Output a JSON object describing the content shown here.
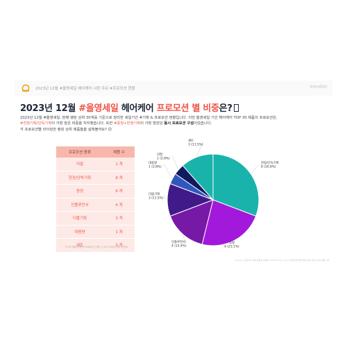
{
  "header": {
    "breadcrumb": "2023년 12월 #올영세일 헤어케어 시장 주요 #프로모션 현황",
    "brand": "trendier"
  },
  "title": {
    "prefix": "2023년 12월 ",
    "highlight1": "#올영세일",
    "middle": " 헤어케어 ",
    "highlight2": "프로모션 별 비중",
    "suffix": "은?"
  },
  "description": {
    "line1": "2023년 12월 #올영세일, 판매 랭킹 상위 30개를 기준으로 정리한 세일기간 #기획 & 프로모션 현황입니다. 이번 올영세일 기간 헤어케어 TOP 30 제품의 프로모션은,",
    "line2_red1": "#한정기획/단독기획",
    "line2_mid": "이 가장 높은 비중을 차지했습니다. 또한 ",
    "line2_red2": "#증정+한정기획",
    "line2_end": "이 가장 많았던 ",
    "line2_bold": "동시 프로모션 구성",
    "line2_tail": "이었습니다.",
    "line3": "각 프로모션별 라이징한 랭킹 상위 제품들을 살펴볼까요? 😊"
  },
  "table": {
    "header_type": "프로모션 종류",
    "header_count": "제품 수",
    "rows": [
      {
        "type": "리필",
        "count": "1 개"
      },
      {
        "type": "한정/단독기획",
        "count": "8 개"
      },
      {
        "type": "증정",
        "count": "6 개"
      },
      {
        "type": "인플루언서",
        "count": "4 개"
      },
      {
        "type": "더블기획",
        "count": "3 개"
      },
      {
        "type": "대용량",
        "count": "1 개"
      },
      {
        "type": "세트",
        "count": "3 개"
      }
    ],
    "note": "**1개 제품에 중복 프로모션 진행 시 각각 프로모션에 카운트"
  },
  "source": "Source: 트렌디어 자체 클롤링 데이터, 2023.12.01~12.07 올리브영 헤어케어 랭킹 상위 30개 제품 기준",
  "colors": {
    "accent": "#ef5349",
    "table_header": "#f7b7ad",
    "table_row": "#fde9e6"
  },
  "chart_data": {
    "type": "pie",
    "slices": [
      {
        "name": "한정/단독기획",
        "count": 8,
        "percent": "30.8%",
        "color": "#1ab3ac",
        "label_line1": "한정/단독기획",
        "label_line2": "8 (30.8%)"
      },
      {
        "name": "증정",
        "count": 6,
        "percent": "23.1%",
        "color": "#a319dc",
        "label_line1": "증정",
        "label_line2": "6 (23.1%)"
      },
      {
        "name": "인플루언서",
        "count": 4,
        "percent": "15.4%",
        "color": "#7719a7",
        "label_line1": "인플루언서",
        "label_line2": "4 (15.4%)"
      },
      {
        "name": "더블기획",
        "count": 3,
        "percent": "11.5%",
        "color": "#411a89",
        "label_line1": "더블기획",
        "label_line2": "3 (11.5%)"
      },
      {
        "name": "대용량",
        "count": 1,
        "percent": "3.8%",
        "color": "#3057bf",
        "label_line1": "대용량",
        "label_line2": "1 (3.8%)"
      },
      {
        "name": "리필",
        "count": 1,
        "percent": "3.8%",
        "color": "#0f1b5e",
        "label_line1": "리필",
        "label_line2": "1 (3.8%)"
      },
      {
        "name": "세트",
        "count": 3,
        "percent": "11.5%",
        "color": "#1ab3ac",
        "label_line1": "세트",
        "label_line2": "3 (11.5%)"
      }
    ]
  }
}
